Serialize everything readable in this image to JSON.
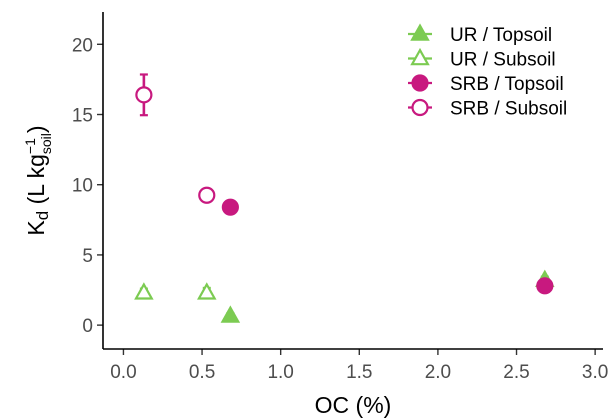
{
  "chart_data": {
    "type": "scatter",
    "xlabel": "OC (%)",
    "ylabel": {
      "main": "K",
      "main_sub": "d",
      "unit_open": " (L kg",
      "unit_sup": "−1",
      "unit_sub": "soil",
      "unit_close": ")"
    },
    "xlim": [
      -0.13,
      3.05
    ],
    "ylim": [
      -1.7,
      22.3
    ],
    "x_ticks": [
      0.0,
      0.5,
      1.0,
      1.5,
      2.0,
      2.5,
      3.0
    ],
    "x_tick_labels": [
      "0.0",
      "0.5",
      "1.0",
      "1.5",
      "2.0",
      "2.5",
      "3.0"
    ],
    "y_ticks": [
      0,
      5,
      10,
      15,
      20
    ],
    "y_tick_labels": [
      "0",
      "5",
      "10",
      "15",
      "20"
    ],
    "grid": false,
    "legend_position": "top-right",
    "colors": {
      "UR": "#7ccb52",
      "SRB": "#c8197f"
    },
    "series": [
      {
        "name": "UR / Topsoil",
        "marker": "triangle",
        "fill": "filled",
        "color": "#7ccb52",
        "points": [
          {
            "x": 0.68,
            "y": 0.65,
            "err": 0.2
          },
          {
            "x": 2.68,
            "y": 3.2,
            "err": 0.25
          }
        ]
      },
      {
        "name": "UR / Subsoil",
        "marker": "triangle",
        "fill": "open",
        "color": "#7ccb52",
        "points": [
          {
            "x": 0.13,
            "y": 2.3,
            "err": 0.3
          },
          {
            "x": 0.53,
            "y": 2.3,
            "err": 0.35
          }
        ]
      },
      {
        "name": "SRB / Topsoil",
        "marker": "circle",
        "fill": "filled",
        "color": "#c8197f",
        "points": [
          {
            "x": 0.68,
            "y": 8.4,
            "err": 0.45
          },
          {
            "x": 2.68,
            "y": 2.8,
            "err": 0.3
          }
        ]
      },
      {
        "name": "SRB / Subsoil",
        "marker": "circle",
        "fill": "open",
        "color": "#c8197f",
        "points": [
          {
            "x": 0.13,
            "y": 16.4,
            "err": 1.45
          },
          {
            "x": 0.53,
            "y": 9.25,
            "err": 0.35
          }
        ]
      }
    ]
  }
}
